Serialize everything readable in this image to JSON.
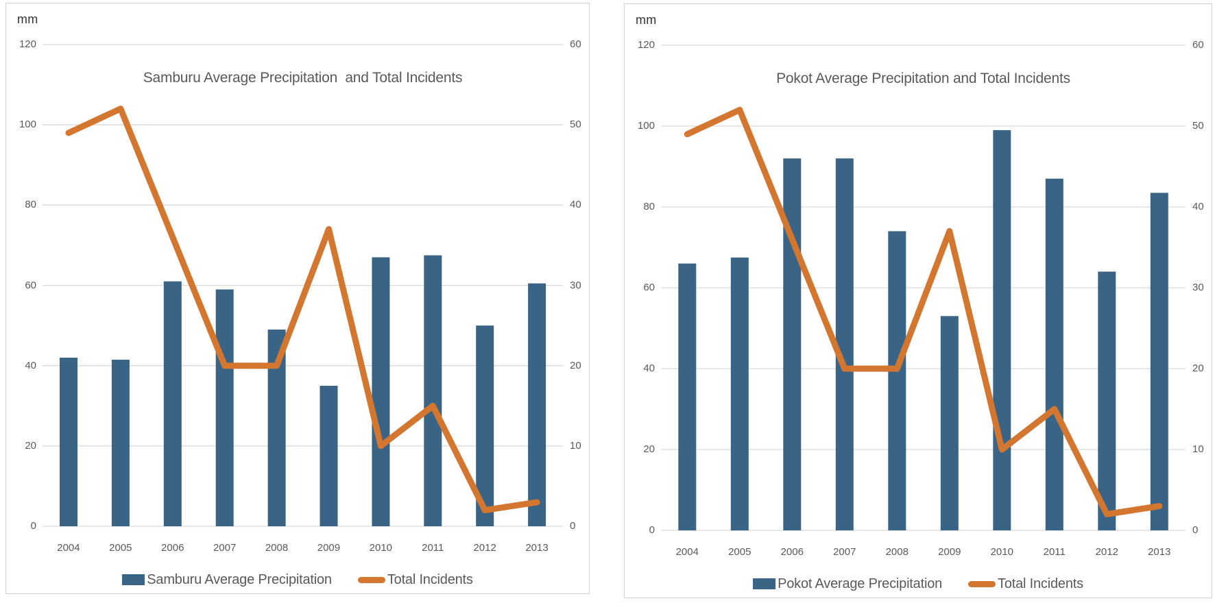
{
  "page": {
    "background_color": "#ffffff",
    "panel_border_color": "#d2d2d2"
  },
  "ui_colors": {
    "bar_blue": "#3a6485",
    "line_orange": "#d3762f",
    "gridline": "#d9d9d9",
    "axis_text": "#595959",
    "title_text": "#595959",
    "unit_label_text": "#333333"
  },
  "chart_data": [
    {
      "type": "combo",
      "title": "Samburu Average Precipitation  and Total Incidents",
      "y_left_title": "mm",
      "y_left_ticks": [
        120,
        100,
        80,
        60,
        40,
        20,
        0
      ],
      "y_right_ticks": [
        60,
        50,
        40,
        30,
        20,
        10,
        0
      ],
      "y_left_range": [
        0,
        120
      ],
      "y_right_range": [
        0,
        60
      ],
      "grid": "horizontal",
      "legend_position": "bottom",
      "categories": [
        "2004",
        "2005",
        "2006",
        "2007",
        "2008",
        "2009",
        "2010",
        "2011",
        "2012",
        "2013"
      ],
      "series": [
        {
          "name": "Samburu Average Precipitation",
          "type": "bar",
          "axis": "left",
          "color": "#3a6485",
          "values": [
            42,
            41.5,
            61,
            59,
            49,
            35,
            67,
            67.5,
            50,
            60.5
          ]
        },
        {
          "name": "Total Incidents",
          "type": "line",
          "axis": "right",
          "color": "#d3762f",
          "values": [
            49,
            52,
            36,
            20,
            20,
            37,
            10,
            15,
            2,
            3
          ]
        }
      ]
    },
    {
      "type": "combo",
      "title": "Pokot Average Precipitation and Total Incidents",
      "y_left_title": "mm",
      "y_left_ticks": [
        120,
        100,
        80,
        60,
        40,
        20,
        0
      ],
      "y_right_ticks": [
        60,
        50,
        40,
        30,
        20,
        10,
        0
      ],
      "y_left_range": [
        0,
        120
      ],
      "y_right_range": [
        0,
        60
      ],
      "grid": "horizontal",
      "legend_position": "bottom",
      "categories": [
        "2004",
        "2005",
        "2006",
        "2007",
        "2008",
        "2009",
        "2010",
        "2011",
        "2012",
        "2013"
      ],
      "series": [
        {
          "name": "Pokot Average Precipitation",
          "type": "bar",
          "axis": "left",
          "color": "#3a6485",
          "values": [
            66,
            67.5,
            92,
            92,
            74,
            53,
            99,
            87,
            64,
            83.5
          ]
        },
        {
          "name": "Total Incidents",
          "type": "line",
          "axis": "right",
          "color": "#d3762f",
          "values": [
            49,
            52,
            36,
            20,
            20,
            37,
            10,
            15,
            2,
            3
          ]
        }
      ]
    }
  ]
}
